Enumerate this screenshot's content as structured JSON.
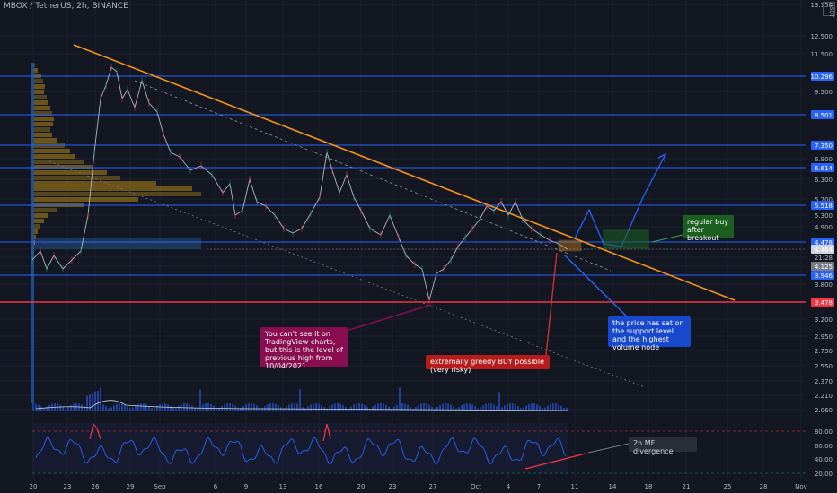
{
  "header": {
    "title": "MBOX / TetherUS, 2h, BINANCE",
    "currency": "USDT"
  },
  "colors": {
    "background": "#131722",
    "grid": "#1e2230",
    "axis_text": "#b2b5be",
    "blue_line": "#2962ff",
    "red_line": "#f23645",
    "orange_trend": "#f7931a",
    "price_line": "#d1d4dc",
    "volume_profile_orange": "#b8860b",
    "volume_profile_blue": "#1e4f9c",
    "mfi_line": "#2962ff",
    "mfi_overbought": "#f23645",
    "mfi_oversold": "#089981"
  },
  "price_axis": {
    "ticks": [
      "13.150",
      "12.500",
      "11.500",
      "10.296",
      "9.500",
      "8.501",
      "7.350",
      "6.900",
      "6.614",
      "6.300",
      "5.700",
      "5.518",
      "5.300",
      "4.900",
      "4.478",
      "4.464",
      "21:28",
      "4.125",
      "3.946",
      "3.800",
      "3.478",
      "3.200",
      "2.950",
      "2.750",
      "2.550",
      "2.370",
      "2.210",
      "2.060"
    ],
    "highlighted_levels": [
      {
        "label": "10.296",
        "color": "#2962ff"
      },
      {
        "label": "8.501",
        "color": "#2962ff"
      },
      {
        "label": "7.350",
        "color": "#2962ff"
      },
      {
        "label": "6.614",
        "color": "#2962ff"
      },
      {
        "label": "5.518",
        "color": "#2962ff"
      },
      {
        "label": "4.478",
        "color": "#2962ff"
      },
      {
        "label": "4.464",
        "color": "#d1d4dc"
      },
      {
        "label": "4.125",
        "color": "#787b86"
      },
      {
        "label": "3.946",
        "color": "#2962ff"
      },
      {
        "label": "3.478",
        "color": "#f23645"
      }
    ]
  },
  "mfi_axis": {
    "ticks": [
      "80.00",
      "60.00",
      "40.00",
      "20.00"
    ]
  },
  "time_axis": {
    "ticks": [
      "20",
      "23",
      "26",
      "29",
      "Sep",
      "6",
      "9",
      "13",
      "16",
      "20",
      "23",
      "27",
      "Oct",
      "4",
      "7",
      "11",
      "14",
      "18",
      "21",
      "25",
      "28",
      "Nov"
    ]
  },
  "annotations": {
    "tradingview_note": "You can't see it on TradingView charts, but this is the level of previous high from 10/04/2021",
    "greedy_note": "extremally greedy BUY possible (very risky)",
    "support_note": "the price has sat on the support level and the highest volume node",
    "regular_buy_note": "regular buy after breakout",
    "mfi_note": "2h MFI divergence"
  }
}
